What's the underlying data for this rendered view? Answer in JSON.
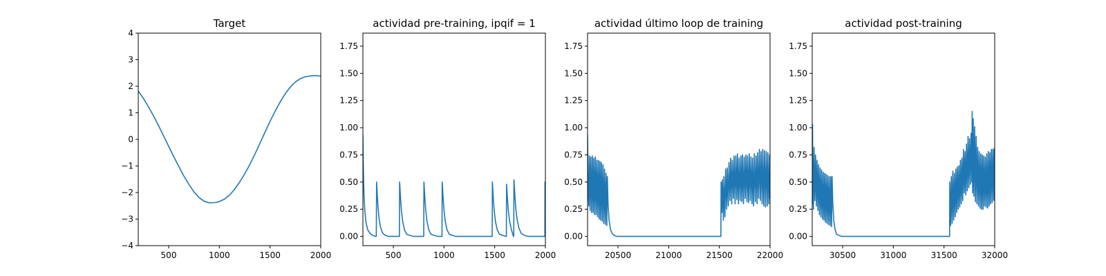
{
  "line_color": "#1f77b4",
  "chart_data": [
    {
      "type": "line",
      "title": "Target",
      "xlim": [
        200,
        2000
      ],
      "ylim": [
        -4,
        4
      ],
      "xticks": [
        500,
        1000,
        1500,
        2000
      ],
      "xtick_labels": [
        "500",
        "1000",
        "1500",
        "2000"
      ],
      "yticks": [
        -4,
        -3,
        -2,
        -1,
        0,
        1,
        2,
        3,
        4
      ],
      "ytick_labels": [
        "−4",
        "−3",
        "−2",
        "−1",
        "0",
        "1",
        "2",
        "3",
        "4"
      ],
      "series": [
        {
          "x": [
            200,
            250,
            300,
            350,
            400,
            450,
            500,
            550,
            600,
            650,
            700,
            750,
            800,
            850,
            900,
            950,
            975,
            1000,
            1050,
            1100,
            1150,
            1200,
            1250,
            1300,
            1350,
            1400,
            1450,
            1500,
            1550,
            1600,
            1650,
            1700,
            1750,
            1800,
            1850,
            1900,
            1950,
            2000
          ],
          "y": [
            1.82,
            1.55,
            1.23,
            0.89,
            0.52,
            0.13,
            -0.26,
            -0.65,
            -1.02,
            -1.38,
            -1.7,
            -1.98,
            -2.19,
            -2.33,
            -2.39,
            -2.38,
            -2.37,
            -2.34,
            -2.25,
            -2.1,
            -1.88,
            -1.61,
            -1.3,
            -0.95,
            -0.56,
            -0.15,
            0.27,
            0.68,
            1.06,
            1.41,
            1.72,
            1.97,
            2.16,
            2.29,
            2.36,
            2.39,
            2.4,
            2.38
          ]
        }
      ]
    },
    {
      "type": "line",
      "title": "actividad pre-training, ipqif = 1",
      "xlim": [
        200,
        2000
      ],
      "ylim": [
        -0.085,
        1.87
      ],
      "xticks": [
        500,
        1000,
        1500,
        2000
      ],
      "xtick_labels": [
        "500",
        "1000",
        "1500",
        "2000"
      ],
      "yticks": [
        0,
        0.25,
        0.5,
        0.75,
        1.0,
        1.25,
        1.5,
        1.75
      ],
      "ytick_labels": [
        "0.00",
        "0.25",
        "0.50",
        "0.75",
        "1.00",
        "1.25",
        "1.50",
        "1.75"
      ],
      "series": [
        {
          "x": [
            200,
            203,
            207,
            212,
            220,
            232,
            248,
            268,
            295,
            325,
            332,
            335,
            338,
            343,
            350,
            360,
            375,
            395,
            420,
            450,
            480,
            515,
            555,
            560,
            562,
            566,
            572,
            580,
            592,
            610,
            632,
            660,
            700,
            750,
            795,
            800,
            802,
            806,
            812,
            820,
            832,
            850,
            872,
            900,
            940,
            975,
            980,
            982,
            986,
            992,
            1000,
            1012,
            1030,
            1052,
            1080,
            1120,
            1200,
            1300,
            1400,
            1470,
            1475,
            1477,
            1481,
            1487,
            1495,
            1507,
            1525,
            1547,
            1575,
            1610,
            1615,
            1617,
            1621,
            1627,
            1635,
            1647,
            1665,
            1685,
            1688,
            1690,
            1694,
            1700,
            1708,
            1720,
            1738,
            1760,
            1790,
            1830,
            1880,
            1940,
            1995,
            1996,
            2000
          ],
          "y": [
            0.93,
            0.7,
            0.5,
            0.35,
            0.22,
            0.12,
            0.06,
            0.03,
            0.01,
            0.0,
            0.0,
            0.5,
            0.45,
            0.36,
            0.26,
            0.16,
            0.08,
            0.03,
            0.01,
            0.0,
            0.0,
            0.0,
            0.0,
            0.0,
            0.5,
            0.44,
            0.34,
            0.24,
            0.14,
            0.06,
            0.02,
            0.01,
            0.0,
            0.0,
            0.0,
            0.0,
            0.5,
            0.44,
            0.34,
            0.24,
            0.14,
            0.06,
            0.02,
            0.01,
            0.0,
            0.0,
            0.0,
            0.5,
            0.44,
            0.34,
            0.24,
            0.14,
            0.06,
            0.02,
            0.01,
            0.0,
            0.0,
            0.0,
            0.0,
            0.0,
            0.0,
            0.5,
            0.44,
            0.34,
            0.24,
            0.14,
            0.06,
            0.02,
            0.01,
            0.0,
            0.0,
            0.48,
            0.42,
            0.33,
            0.23,
            0.14,
            0.06,
            0.0,
            0.0,
            0.52,
            0.46,
            0.36,
            0.26,
            0.16,
            0.08,
            0.03,
            0.01,
            0.0,
            0.0,
            0.0,
            0.0,
            0.5,
            0.5
          ]
        }
      ]
    },
    {
      "type": "line",
      "title": "actividad último loop de training",
      "xlim": [
        20200,
        22000
      ],
      "ylim": [
        -0.085,
        1.87
      ],
      "xticks": [
        20500,
        21000,
        21500,
        22000
      ],
      "xtick_labels": [
        "20500",
        "21000",
        "21500",
        "22000"
      ],
      "yticks": [
        0,
        0.25,
        0.5,
        0.75,
        1.0,
        1.25,
        1.5,
        1.75
      ],
      "ytick_labels": [
        "0.00",
        "0.25",
        "0.50",
        "0.75",
        "1.00",
        "1.25",
        "1.50",
        "1.75"
      ],
      "series": [
        {
          "x": [
            20200,
            20203,
            20206,
            20212,
            20218,
            20225,
            20232,
            20240,
            20247,
            20255,
            20262,
            20270,
            20277,
            20285,
            20292,
            20300,
            20307,
            20315,
            20322,
            20330,
            20337,
            20345,
            20352,
            20360,
            20367,
            20375,
            20382,
            20390,
            20395,
            20402,
            20412,
            20425,
            20440,
            20460,
            20490,
            20530,
            20600,
            20800,
            21000,
            21200,
            21400,
            21515,
            21517,
            21525,
            21530,
            21540,
            21545,
            21555,
            21562,
            21572,
            21578,
            21588,
            21595,
            21605,
            21612,
            21622,
            21628,
            21638,
            21645,
            21655,
            21662,
            21672,
            21678,
            21688,
            21695,
            21705,
            21712,
            21722,
            21728,
            21738,
            21745,
            21755,
            21762,
            21772,
            21778,
            21788,
            21795,
            21805,
            21812,
            21822,
            21828,
            21838,
            21845,
            21855,
            21862,
            21872,
            21878,
            21888,
            21895,
            21905,
            21912,
            21922,
            21928,
            21938,
            21945,
            21955,
            21962,
            21972,
            21978,
            21988,
            21995,
            22000
          ],
          "y": [
            0.93,
            0.72,
            0.45,
            0.28,
            0.74,
            0.24,
            0.73,
            0.22,
            0.74,
            0.22,
            0.72,
            0.2,
            0.73,
            0.2,
            0.7,
            0.18,
            0.7,
            0.16,
            0.69,
            0.15,
            0.68,
            0.14,
            0.66,
            0.12,
            0.62,
            0.11,
            0.58,
            0.1,
            0.55,
            0.3,
            0.15,
            0.07,
            0.03,
            0.01,
            0.0,
            0.0,
            0.0,
            0.0,
            0.0,
            0.0,
            0.0,
            0.0,
            0.5,
            0.22,
            0.52,
            0.15,
            0.55,
            0.18,
            0.62,
            0.25,
            0.63,
            0.28,
            0.68,
            0.33,
            0.72,
            0.3,
            0.7,
            0.35,
            0.74,
            0.3,
            0.74,
            0.34,
            0.76,
            0.3,
            0.72,
            0.33,
            0.74,
            0.32,
            0.75,
            0.3,
            0.73,
            0.35,
            0.75,
            0.32,
            0.74,
            0.31,
            0.76,
            0.33,
            0.73,
            0.3,
            0.72,
            0.28,
            0.76,
            0.32,
            0.74,
            0.3,
            0.77,
            0.35,
            0.8,
            0.33,
            0.78,
            0.3,
            0.8,
            0.28,
            0.79,
            0.27,
            0.78,
            0.28,
            0.77,
            0.3,
            0.75,
            0.35
          ]
        }
      ]
    },
    {
      "type": "line",
      "title": "actividad post-training",
      "xlim": [
        30200,
        32000
      ],
      "ylim": [
        -0.085,
        1.87
      ],
      "xticks": [
        30500,
        31000,
        31500,
        32000
      ],
      "xtick_labels": [
        "30500",
        "31000",
        "31500",
        "32000"
      ],
      "yticks": [
        0,
        0.25,
        0.5,
        0.75,
        1.0,
        1.25,
        1.5,
        1.75
      ],
      "ytick_labels": [
        "0.00",
        "0.25",
        "0.50",
        "0.75",
        "1.00",
        "1.25",
        "1.50",
        "1.75"
      ],
      "series": [
        {
          "x": [
            30200,
            30203,
            30207,
            30212,
            30218,
            30226,
            30233,
            30241,
            30248,
            30256,
            30263,
            30271,
            30278,
            30286,
            30293,
            30301,
            30308,
            30316,
            30323,
            30331,
            30338,
            30346,
            30353,
            30361,
            30368,
            30376,
            30383,
            30391,
            30396,
            30403,
            30413,
            30426,
            30441,
            30461,
            30491,
            30531,
            30600,
            30800,
            31000,
            31200,
            31400,
            31555,
            31557,
            31565,
            31572,
            31580,
            31587,
            31595,
            31602,
            31610,
            31617,
            31625,
            31632,
            31640,
            31647,
            31655,
            31662,
            31670,
            31677,
            31685,
            31692,
            31700,
            31707,
            31715,
            31722,
            31730,
            31737,
            31745,
            31752,
            31760,
            31767,
            31775,
            31778,
            31782,
            31788,
            31795,
            31802,
            31810,
            31817,
            31825,
            31832,
            31840,
            31847,
            31855,
            31862,
            31870,
            31877,
            31885,
            31892,
            31900,
            31907,
            31915,
            31922,
            31930,
            31937,
            31945,
            31952,
            31960,
            31967,
            31975,
            31982,
            31990,
            31995,
            32000
          ],
          "y": [
            0.3,
            1.03,
            0.5,
            0.25,
            0.82,
            0.33,
            0.75,
            0.28,
            0.7,
            0.24,
            0.66,
            0.2,
            0.63,
            0.18,
            0.61,
            0.16,
            0.59,
            0.15,
            0.58,
            0.13,
            0.57,
            0.12,
            0.56,
            0.11,
            0.55,
            0.1,
            0.55,
            0.09,
            0.55,
            0.3,
            0.14,
            0.06,
            0.02,
            0.01,
            0.0,
            0.0,
            0.0,
            0.0,
            0.0,
            0.0,
            0.0,
            0.0,
            0.5,
            0.1,
            0.55,
            0.12,
            0.6,
            0.15,
            0.58,
            0.18,
            0.62,
            0.22,
            0.64,
            0.25,
            0.65,
            0.27,
            0.7,
            0.3,
            0.72,
            0.33,
            0.8,
            0.4,
            0.78,
            0.38,
            0.85,
            0.42,
            0.92,
            0.45,
            0.9,
            0.48,
            0.95,
            0.5,
            1.15,
            0.4,
            1.08,
            0.37,
            1.01,
            0.32,
            0.92,
            0.3,
            0.82,
            0.28,
            0.78,
            0.26,
            0.76,
            0.25,
            0.75,
            0.25,
            0.74,
            0.28,
            0.73,
            0.27,
            0.76,
            0.26,
            0.78,
            0.28,
            0.77,
            0.3,
            0.8,
            0.31,
            0.8,
            0.33,
            0.81,
            0.35
          ]
        }
      ]
    }
  ]
}
